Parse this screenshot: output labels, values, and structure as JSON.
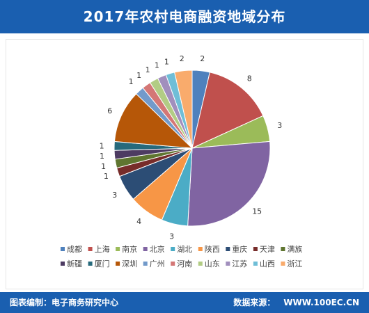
{
  "title": "2017年农村电商融资地域分布",
  "footer": {
    "editor_label": "图表编制：",
    "editor_value": "电子商务研究中心",
    "source_label": "数据来源：",
    "source_value": "WWW.100EC.CN"
  },
  "chart_data": {
    "type": "pie",
    "title": "2017年农村电商融资地域分布",
    "categories": [
      "成都",
      "上海",
      "南京",
      "北京",
      "湖北",
      "陕西",
      "重庆",
      "天津",
      "满族",
      "新疆",
      "厦门",
      "深圳",
      "广州",
      "河南",
      "山东",
      "江苏",
      "山西",
      "浙江"
    ],
    "values": [
      2,
      8,
      3,
      15,
      3,
      4,
      3,
      1,
      1,
      1,
      1,
      6,
      1,
      1,
      1,
      1,
      1,
      2
    ],
    "colors": [
      "#4f81bd",
      "#c0504d",
      "#9bbb59",
      "#8064a2",
      "#4bacc6",
      "#f79646",
      "#2c4d75",
      "#772c2a",
      "#5f7530",
      "#4d3b62",
      "#276a7c",
      "#b65708",
      "#729aca",
      "#d47776",
      "#b2cc84",
      "#a18fbd",
      "#6fbed7",
      "#f9ab6c"
    ],
    "legend_position": "bottom",
    "start_angle": "12 o'clock",
    "direction": "clockwise"
  }
}
